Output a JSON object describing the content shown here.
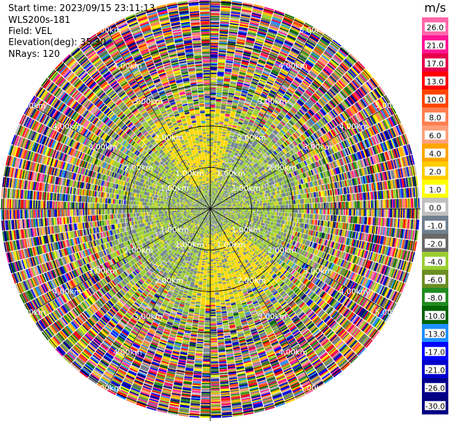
{
  "info": {
    "start_time": "Start time: 2023/09/15 23:11:13",
    "instrument": "WLS200s-181",
    "field": "Field: VEL",
    "elevation": "Elevation(deg): 35.30",
    "nrays": "NRays: 120"
  },
  "colorbar": {
    "unit": "m/s",
    "tick_labels": [
      "26.0",
      "21.0",
      "17.0",
      "13.0",
      "10.0",
      "8.0",
      "6.0",
      "4.0",
      "2.0",
      "1.0",
      "0.0",
      "-1.0",
      "-2.0",
      "-4.0",
      "-6.0",
      "-8.0",
      "-10.0",
      "-13.0",
      "-17.0",
      "-21.0",
      "-26.0",
      "-30.0"
    ],
    "colors": [
      "#ff66aa",
      "#ff1493",
      "#e6004c",
      "#ff0000",
      "#ff4500",
      "#ff7f50",
      "#ffa07a",
      "#ffa500",
      "#ffcc00",
      "#ffff00",
      "#c0c0c0",
      "#708090",
      "#696969",
      "#9acd32",
      "#6b8e23",
      "#228b22",
      "#006400",
      "#1e90ff",
      "#0000ff",
      "#0000cd",
      "#00008b",
      "#000080"
    ]
  },
  "chart_data": {
    "type": "heatmap",
    "projection": "polar (PPI)",
    "field": "VEL",
    "units": "m/s",
    "n_rays": 120,
    "value_range": [
      -30.0,
      26.0
    ],
    "range_rings": [
      {
        "label": "1.00km",
        "value_km": 1.0
      },
      {
        "label": "2.00km",
        "value_km": 2.0
      },
      {
        "label": "3.00km",
        "value_km": 3.0
      },
      {
        "label": "4.00km",
        "value_km": 4.0
      },
      {
        "label": "5.00km",
        "value_km": 5.0
      }
    ],
    "description_of_field": {
      "near_range_km": [
        0,
        1.5
      ],
      "near_range_values": "mostly -2 to 2 m/s (green, grey, yellow)",
      "far_range_km": [
        3.5,
        5.0
      ],
      "far_range_values": "noisy, full scale -30 to 26 m/s"
    }
  }
}
